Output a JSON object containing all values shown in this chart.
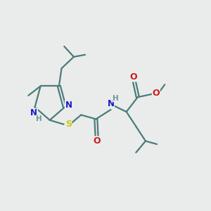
{
  "bg_color": "#eaeceb",
  "bond_color": "#4a7c7a",
  "bond_width": 1.6,
  "atom_colors": {
    "N": "#1a1acc",
    "O": "#cc1a1a",
    "S": "#cccc00",
    "H": "#6a9a98",
    "C": "#4a7c7a"
  },
  "figsize": [
    3.0,
    3.0
  ],
  "dpi": 100,
  "xlim": [
    0,
    12
  ],
  "ylim": [
    0,
    10
  ]
}
